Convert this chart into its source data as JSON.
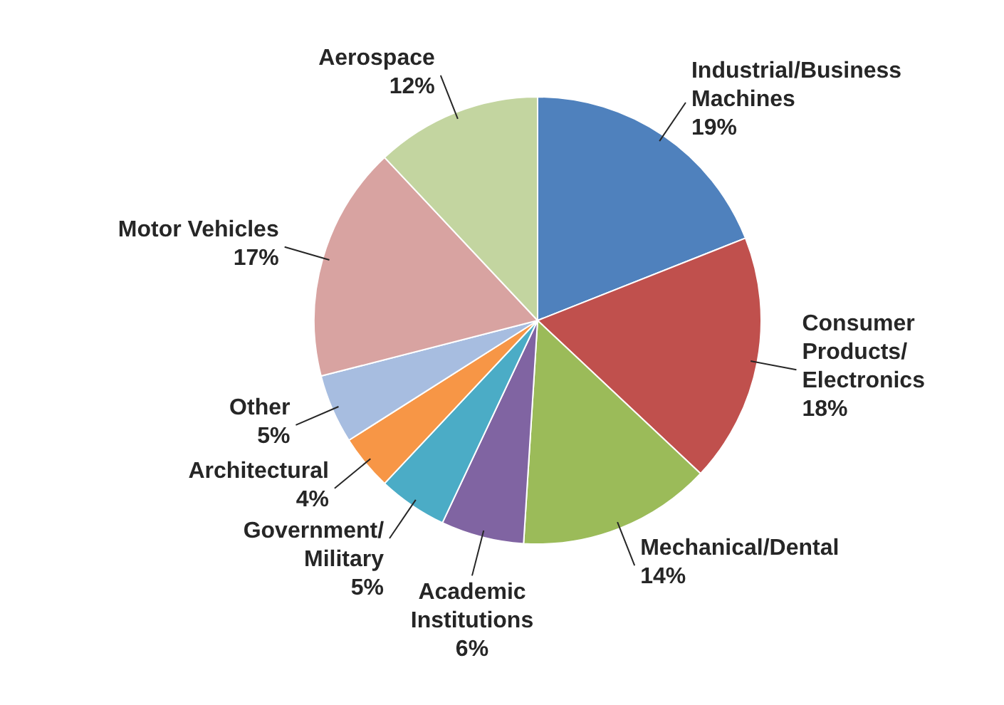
{
  "chart_data": {
    "type": "pie",
    "categories": [
      "Industrial/Business Machines",
      "Consumer Products/Electronics",
      "Mechanical/Dental",
      "Academic Institutions",
      "Government/Military",
      "Architectural",
      "Other",
      "Motor Vehicles",
      "Aerospace"
    ],
    "values": [
      19,
      18,
      14,
      6,
      5,
      4,
      5,
      17,
      12
    ],
    "value_labels": [
      "19%",
      "18%",
      "14%",
      "6%",
      "5%",
      "4%",
      "5%",
      "17%",
      "12%"
    ],
    "colors": [
      "#4f81bd",
      "#c0504d",
      "#9bbb59",
      "#8064a2",
      "#4bacc6",
      "#f79646",
      "#a7bde0",
      "#d8a3a1",
      "#c3d5a0"
    ],
    "legend": false
  }
}
